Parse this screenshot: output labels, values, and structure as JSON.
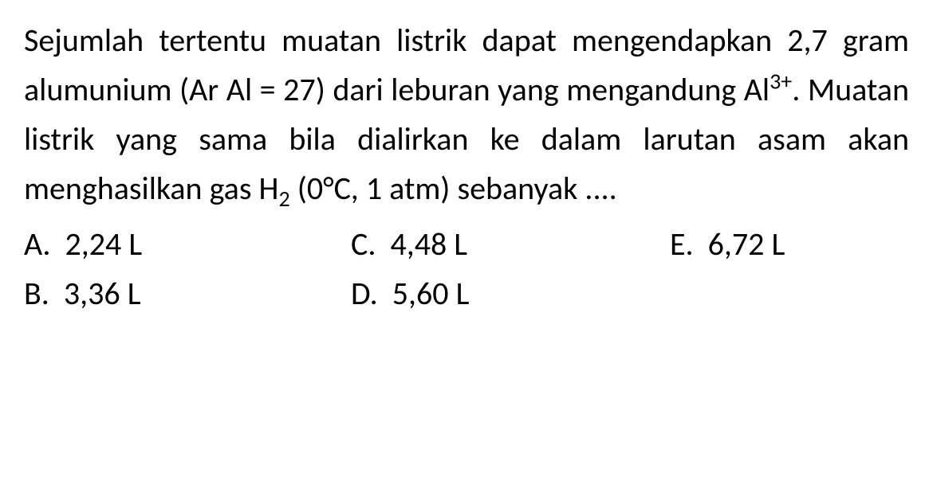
{
  "question": {
    "text_parts": {
      "p1": "Sejumlah tertentu muatan listrik dapat mengendapkan 2,7 gram alumunium (Ar Al = 27) dari leburan yang mengandung Al",
      "sup1": "3+",
      "p2": ". Muatan listrik yang sama bila dialirkan ke dalam larutan asam akan menghasilkan gas H",
      "sub1": "2",
      "p3": " (0°C, 1 atm) sebanyak ...."
    }
  },
  "options": {
    "a": {
      "letter": "A.",
      "value": "2,24 L"
    },
    "b": {
      "letter": "B.",
      "value": "3,36 L"
    },
    "c": {
      "letter": "C.",
      "value": "4,48 L"
    },
    "d": {
      "letter": "D.",
      "value": "5,60 L"
    },
    "e": {
      "letter": "E.",
      "value": "6,72 L"
    }
  },
  "styling": {
    "font_size_pt": 30,
    "font_family": "Calibri",
    "text_color": "#000000",
    "background_color": "#ffffff",
    "line_height": 1.55,
    "text_align": "justify"
  }
}
